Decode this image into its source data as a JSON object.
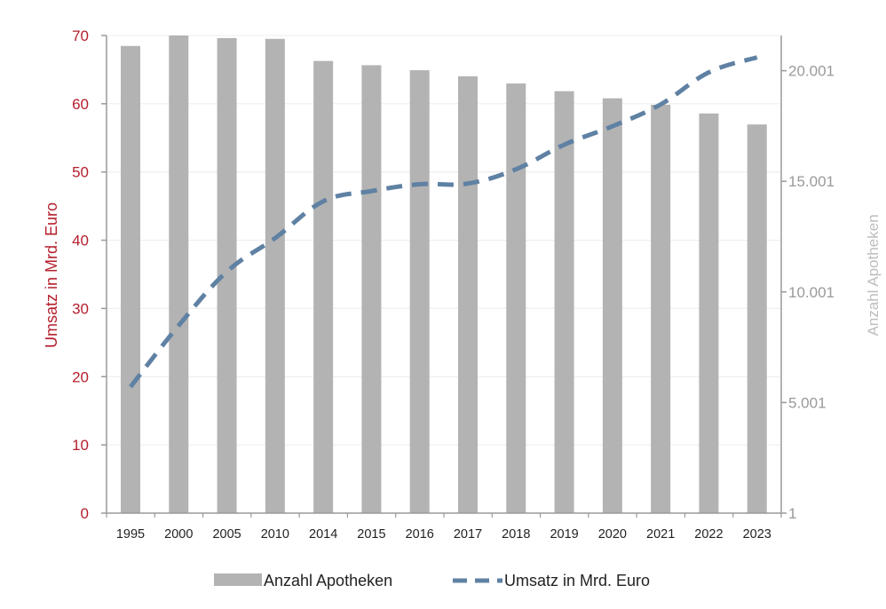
{
  "chart_data": {
    "type": "bar+line",
    "categories": [
      "1995",
      "2000",
      "2005",
      "2010",
      "2014",
      "2015",
      "2016",
      "2017",
      "2018",
      "2019",
      "2020",
      "2021",
      "2022",
      "2023"
    ],
    "series": [
      {
        "name": "Anzahl Apotheken",
        "type": "bar",
        "axis": "right",
        "color": "#b3b3b3",
        "values": [
          21119,
          21592,
          21476,
          21441,
          20441,
          20249,
          20023,
          19748,
          19423,
          19075,
          18753,
          18461,
          18068,
          17571
        ]
      },
      {
        "name": "Umsatz in Mrd. Euro",
        "type": "line",
        "style": "dashed",
        "axis": "left",
        "color": "#5f81a3",
        "values": [
          18.5,
          27.5,
          35.4,
          40.3,
          45.7,
          47.2,
          48.2,
          48.3,
          50.4,
          54.0,
          56.7,
          59.9,
          64.6,
          66.8
        ]
      }
    ],
    "y_left": {
      "label": "Umsatz in Mrd. Euro",
      "ylim": [
        0,
        70
      ],
      "ticks": [
        "0",
        "10",
        "20",
        "30",
        "40",
        "50",
        "60",
        "70"
      ],
      "color": "#b5202e"
    },
    "y_right": {
      "label": "Anzahl Apotheken",
      "ylim": [
        1,
        21592
      ],
      "tick_values": [
        1,
        5001,
        10001,
        15001,
        20001
      ],
      "ticks": [
        "1",
        "5.001",
        "10.001",
        "15.001",
        "20.001"
      ],
      "color": "#9a9a9a"
    },
    "grid": true,
    "legend": "bottom"
  }
}
